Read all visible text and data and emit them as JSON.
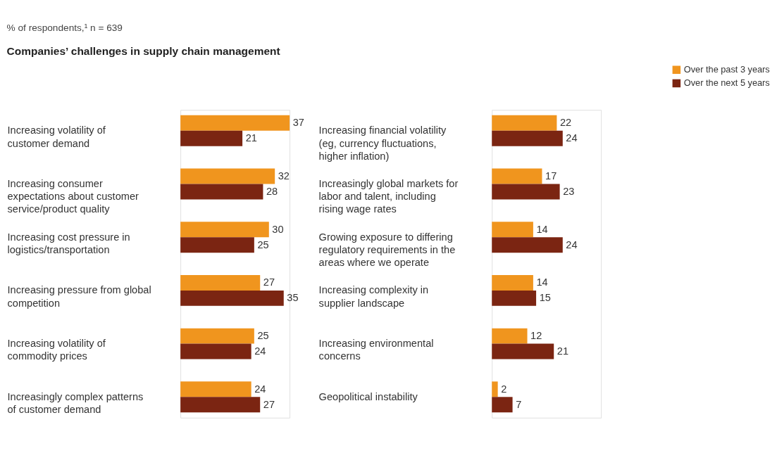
{
  "chart_data": [
    {
      "type": "bar",
      "orientation": "horizontal",
      "title": "Companies’ challenges in supply chain management",
      "subtitle": "% of respondents,¹ n = 639",
      "data_labels": true,
      "categories": [
        "Increasing volatility of customer demand",
        "Increasing consumer expectations about customer service/product quality",
        "Increasing cost pressure in logistics/transportation",
        "Increasing pressure from global competition",
        "Increasing volatility of commodity prices",
        "Increasingly complex patterns of customer demand"
      ],
      "series": [
        {
          "color": "#f0951e",
          "values": [
            37,
            32,
            30,
            27,
            25,
            24
          ]
        },
        {
          "color": "#7b2512",
          "values": [
            21,
            28,
            25,
            35,
            24,
            27
          ]
        }
      ]
    },
    {
      "type": "bar",
      "orientation": "horizontal",
      "data_labels": true,
      "legend": "top right",
      "categories": [
        "Increasing financial volatility (eg, currency fluctuations, higher inflation)",
        "Increasingly global markets for labor and talent, including rising wage rates",
        "Growing exposure to differing regulatory requirements in the areas where we operate",
        "Increasing complexity in supplier landscape",
        "Increasing environmental concerns",
        "Geopolitical instability"
      ],
      "series": [
        {
          "name": "Over the past 3 years",
          "color": "#f0951e",
          "values": [
            22,
            17,
            14,
            14,
            12,
            2
          ]
        },
        {
          "name": "Over the next 5 years",
          "color": "#7b2512",
          "values": [
            24,
            23,
            24,
            15,
            21,
            7
          ]
        }
      ]
    }
  ]
}
